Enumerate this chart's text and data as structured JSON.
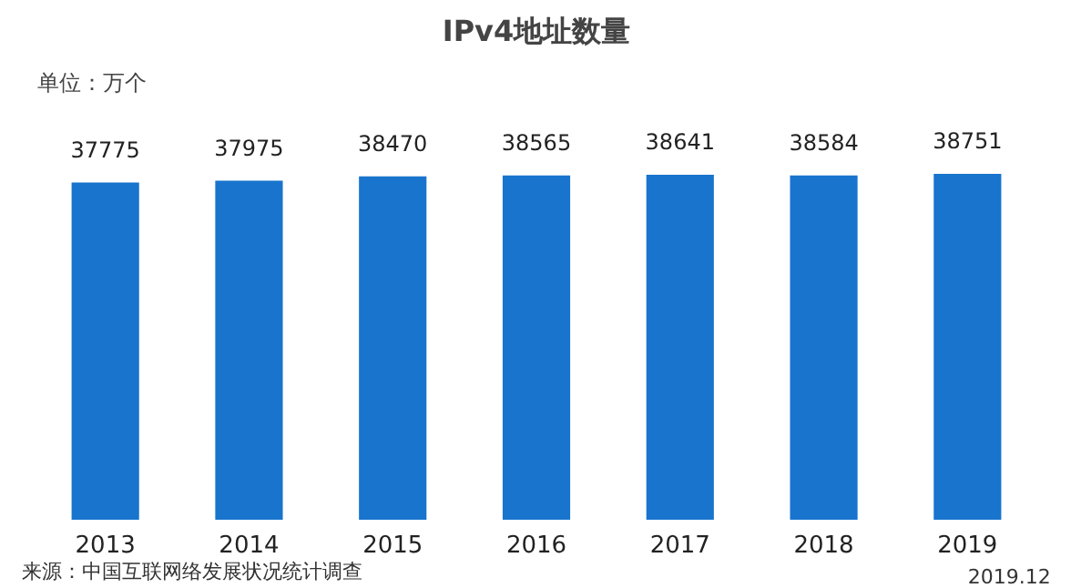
{
  "chart_data": {
    "type": "bar",
    "title": "IPv4地址数量",
    "subtitle": "单位：万个",
    "categories": [
      "2013",
      "2014",
      "2015",
      "2016",
      "2017",
      "2018",
      "2019"
    ],
    "values": [
      37775,
      37975,
      38470,
      38565,
      38641,
      38584,
      38751
    ],
    "color": "#1874cd",
    "data_labels": true,
    "grid": false,
    "annotations": [
      "来源：中国互联网络发展状况统计调查",
      "2019.12"
    ]
  }
}
